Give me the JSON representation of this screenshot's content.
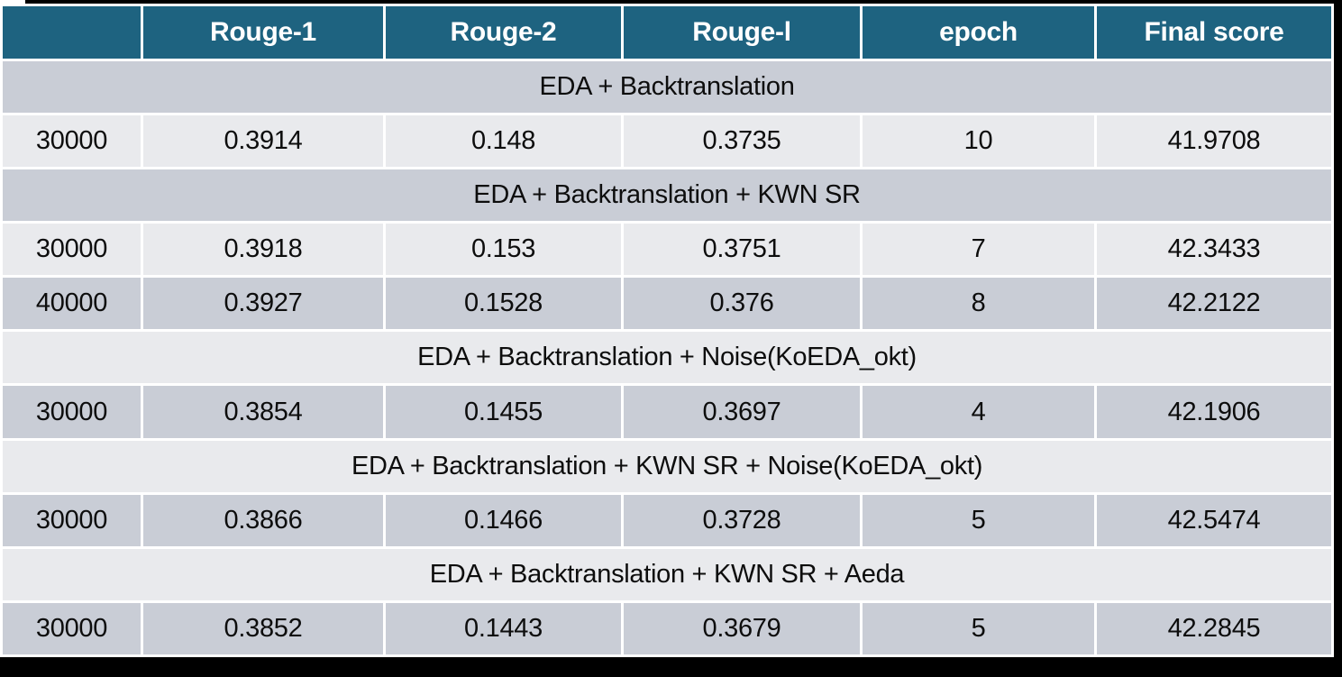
{
  "table": {
    "columns": [
      "",
      "Rouge-1",
      "Rouge-2",
      "Rouge-l",
      "epoch",
      "Final score"
    ],
    "sections": [
      {
        "title": "EDA + Backtranslation",
        "rows": [
          [
            "30000",
            "0.3914",
            "0.148",
            "0.3735",
            "10",
            "41.9708"
          ]
        ]
      },
      {
        "title": "EDA + Backtranslation + KWN SR",
        "rows": [
          [
            "30000",
            "0.3918",
            "0.153",
            "0.3751",
            "7",
            "42.3433"
          ],
          [
            "40000",
            "0.3927",
            "0.1528",
            "0.376",
            "8",
            "42.2122"
          ]
        ]
      },
      {
        "title": "EDA + Backtranslation + Noise(KoEDA_okt)",
        "rows": [
          [
            "30000",
            "0.3854",
            "0.1455",
            "0.3697",
            "4",
            "42.1906"
          ]
        ]
      },
      {
        "title": "EDA + Backtranslation + KWN SR + Noise(KoEDA_okt)",
        "rows": [
          [
            "30000",
            "0.3866",
            "0.1466",
            "0.3728",
            "5",
            "42.5474"
          ]
        ]
      },
      {
        "title": "EDA + Backtranslation + KWN SR + Aeda",
        "rows": [
          [
            "30000",
            "0.3852",
            "0.1443",
            "0.3679",
            "5",
            "42.2845"
          ]
        ]
      }
    ]
  },
  "colors": {
    "header_bg": "#1E6380",
    "header_text": "#FFFFFF",
    "band_dark": "#C9CDD6",
    "band_light": "#E9EAED",
    "body_text": "#0D0D0D",
    "frame": "#000000",
    "gap": "#FFFFFF"
  }
}
